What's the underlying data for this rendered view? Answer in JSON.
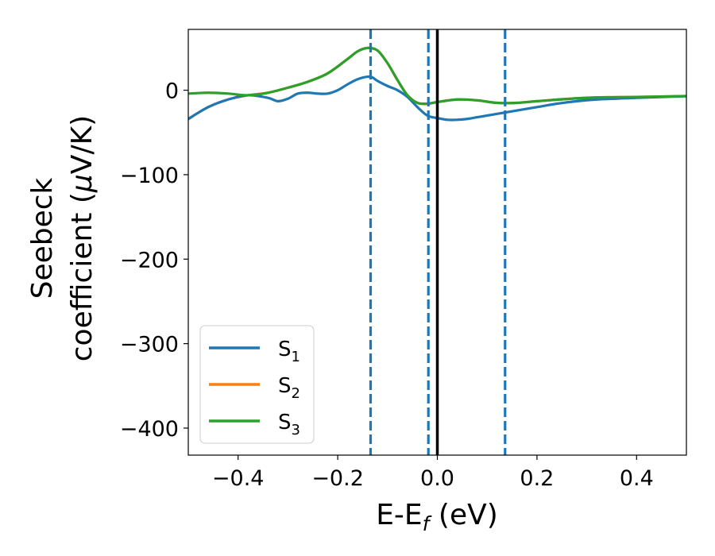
{
  "chart_data": {
    "type": "line",
    "xlabel": "E-E",
    "xlabel_sub": "f",
    "xlabel_unit": " (eV)",
    "ylabel_line1": "Seebeck",
    "ylabel_line2_pre": "coefficient  (",
    "ylabel_mu": "μ",
    "ylabel_line2_post": "V/K)",
    "xlim": [
      -0.5,
      0.5
    ],
    "ylim": [
      -432,
      72
    ],
    "xticks": [
      -0.4,
      -0.2,
      0.0,
      0.2,
      0.4
    ],
    "xtick_labels": [
      "−0.4",
      "−0.2",
      "0.0",
      "0.2",
      "0.4"
    ],
    "yticks": [
      0,
      -100,
      -200,
      -300,
      -400
    ],
    "ytick_labels": [
      "0",
      "−100",
      "−200",
      "−300",
      "−400"
    ],
    "grid": false,
    "legend_position": "lower-left",
    "vlines": [
      {
        "x": -0.134,
        "style": "dashed",
        "color": "#1f77b4"
      },
      {
        "x": -0.018,
        "style": "dashed",
        "color": "#1f77b4"
      },
      {
        "x": 0.0,
        "style": "solid",
        "color": "#000000"
      },
      {
        "x": 0.136,
        "style": "dashed",
        "color": "#1f77b4"
      }
    ],
    "series": [
      {
        "name": "S",
        "sub": "1",
        "color": "#1f77b4",
        "x": [
          -0.5,
          -0.46,
          -0.42,
          -0.38,
          -0.34,
          -0.32,
          -0.3,
          -0.28,
          -0.26,
          -0.24,
          -0.22,
          -0.2,
          -0.18,
          -0.16,
          -0.14,
          -0.13,
          -0.12,
          -0.1,
          -0.08,
          -0.06,
          -0.04,
          -0.02,
          0.0,
          0.02,
          0.04,
          0.06,
          0.08,
          0.1,
          0.12,
          0.14,
          0.16,
          0.2,
          0.24,
          0.28,
          0.32,
          0.4,
          0.5
        ],
        "y": [
          -34,
          -20,
          -11,
          -6,
          -9,
          -13,
          -10,
          -4,
          -3,
          -4,
          -4,
          0,
          7,
          13,
          16,
          15,
          11,
          5,
          0,
          -8,
          -20,
          -30,
          -33,
          -35,
          -35,
          -34,
          -32,
          -30,
          -28,
          -26,
          -24,
          -20,
          -16,
          -13,
          -11,
          -9,
          -7
        ]
      },
      {
        "name": "S",
        "sub": "2",
        "color": "#ff7f0e",
        "x": [
          -0.5,
          -0.46,
          -0.42,
          -0.38,
          -0.34,
          -0.3,
          -0.26,
          -0.22,
          -0.18,
          -0.16,
          -0.14,
          -0.12,
          -0.1,
          -0.08,
          -0.06,
          -0.04,
          -0.02,
          0.0,
          0.04,
          0.08,
          0.12,
          0.16,
          0.2,
          0.3,
          0.4,
          0.5
        ],
        "y": [
          -34,
          -20,
          -11,
          -6,
          -3,
          3,
          10,
          20,
          37,
          46,
          50,
          47,
          32,
          12,
          -6,
          -15,
          -16,
          -14,
          -11,
          -12,
          -15,
          -15,
          -13,
          -9,
          -8,
          -7
        ]
      },
      {
        "name": "S",
        "sub": "3",
        "color": "#2ca02c",
        "x": [
          -0.5,
          -0.46,
          -0.42,
          -0.38,
          -0.34,
          -0.3,
          -0.26,
          -0.22,
          -0.18,
          -0.16,
          -0.14,
          -0.12,
          -0.1,
          -0.08,
          -0.06,
          -0.04,
          -0.02,
          0.0,
          0.04,
          0.08,
          0.12,
          0.16,
          0.2,
          0.3,
          0.4,
          0.5
        ],
        "y": [
          -4,
          -3,
          -4,
          -6,
          -3,
          3,
          10,
          20,
          37,
          46,
          50,
          47,
          32,
          12,
          -6,
          -15,
          -16,
          -14,
          -11,
          -12,
          -15,
          -15,
          -13,
          -9,
          -8,
          -7
        ]
      }
    ]
  }
}
